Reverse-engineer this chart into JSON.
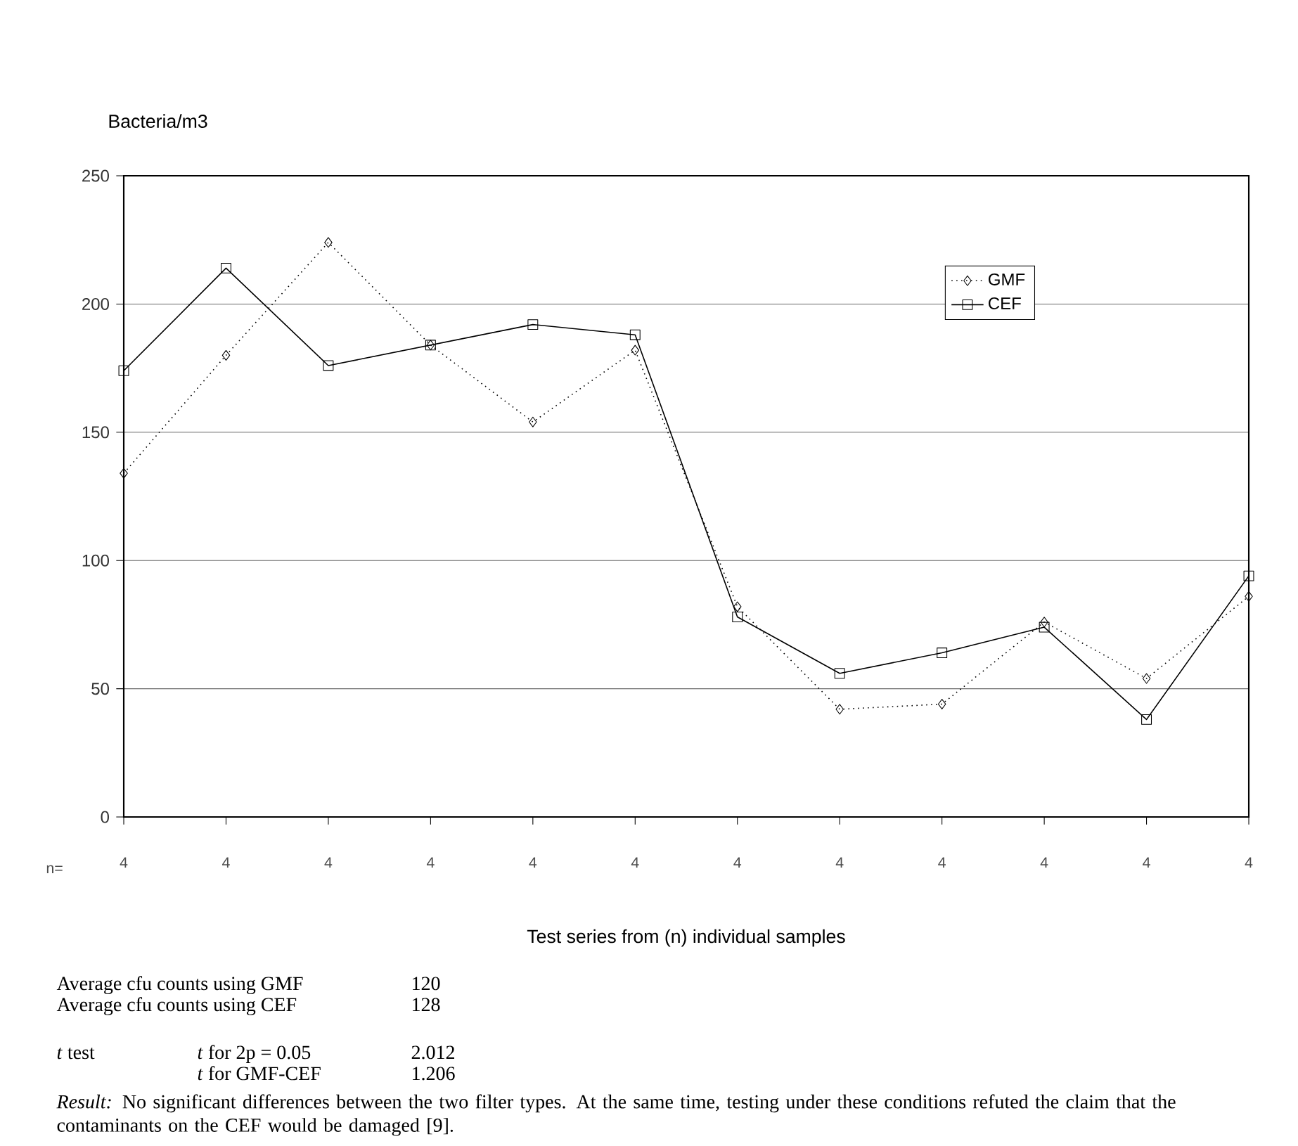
{
  "chart_data": {
    "type": "line",
    "ylabel": "Bacteria/m3",
    "xlabel": "Test series from (n) individual samples",
    "categories": [
      "4",
      "4",
      "4",
      "4",
      "4",
      "4",
      "4",
      "4",
      "4",
      "4",
      "4",
      "4"
    ],
    "series": [
      {
        "name": "GMF",
        "color": "#000000",
        "marker": "diamond",
        "line_style": "dotted",
        "values": [
          134,
          180,
          224,
          184,
          154,
          182,
          82,
          42,
          44,
          76,
          54,
          86
        ]
      },
      {
        "name": "CEF",
        "color": "#000000",
        "marker": "square",
        "line_style": "solid",
        "values": [
          174,
          214,
          176,
          184,
          192,
          188,
          78,
          56,
          64,
          74,
          38,
          94
        ]
      }
    ],
    "ylim": [
      0,
      250
    ],
    "yticks": [
      0,
      50,
      100,
      150,
      200,
      250
    ],
    "grid": "y",
    "legend": "top right",
    "annotations": [
      "n=",
      "Average cfu counts using GMF",
      "120",
      "Average cfu counts using CEF",
      "128",
      "*t* test",
      "*t* for 2p = 0.05",
      "2.012",
      "*t* for GMF-CEF",
      "1.206",
      "*Result:* No significant differences between the two filter types. At the same time, testing under these conditions refuted the claim that the contaminants on the CEF would be damaged [9]."
    ]
  }
}
